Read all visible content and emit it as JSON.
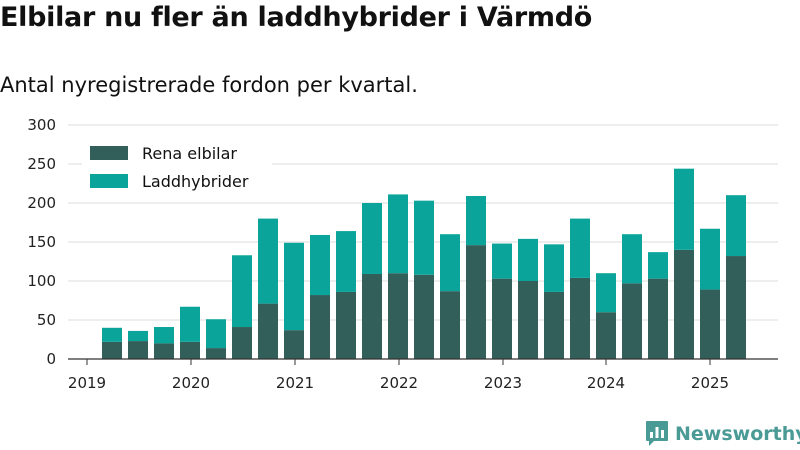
{
  "title": "Elbilar nu fler än laddhybrider i Värmdö",
  "subtitle": "Antal nyregistrerade fordon per kvartal.",
  "brand": {
    "name": "Newsworthy",
    "icon": "newsworthy-logo-icon"
  },
  "colors": {
    "series_1": "#335f5a",
    "series_2": "#0aa49a",
    "grid": "#dddddd",
    "axis": "#333333"
  },
  "chart_data": {
    "type": "bar",
    "stacked": true,
    "title": "Elbilar nu fler än laddhybrider i Värmdö",
    "subtitle": "Antal nyregistrerade fordon per kvartal.",
    "xlabel": "",
    "ylabel": "",
    "ylim": [
      0,
      300
    ],
    "yticks": [
      0,
      50,
      100,
      150,
      200,
      250,
      300
    ],
    "xticks": [
      "2019",
      "2020",
      "2021",
      "2022",
      "2023",
      "2024",
      "2025"
    ],
    "grid": true,
    "legend_position": "top-left",
    "categories": [
      "2019 Q2",
      "2019 Q3",
      "2019 Q4",
      "2020 Q1",
      "2020 Q2",
      "2020 Q3",
      "2020 Q4",
      "2021 Q1",
      "2021 Q2",
      "2021 Q3",
      "2021 Q4",
      "2022 Q1",
      "2022 Q2",
      "2022 Q3",
      "2022 Q4",
      "2023 Q1",
      "2023 Q2",
      "2023 Q3",
      "2023 Q4",
      "2024 Q1",
      "2024 Q2",
      "2024 Q3",
      "2024 Q4",
      "2025 Q1",
      "2025 Q2"
    ],
    "series": [
      {
        "name": "Rena elbilar",
        "values": [
          22,
          23,
          20,
          22,
          14,
          41,
          71,
          37,
          82,
          86,
          109,
          110,
          108,
          87,
          146,
          103,
          100,
          86,
          104,
          60,
          97,
          103,
          140,
          89,
          132
        ]
      },
      {
        "name": "Laddhybrider",
        "values": [
          18,
          13,
          21,
          45,
          37,
          92,
          109,
          112,
          77,
          78,
          91,
          101,
          95,
          73,
          63,
          45,
          54,
          61,
          76,
          50,
          63,
          34,
          104,
          78,
          78
        ]
      }
    ]
  }
}
